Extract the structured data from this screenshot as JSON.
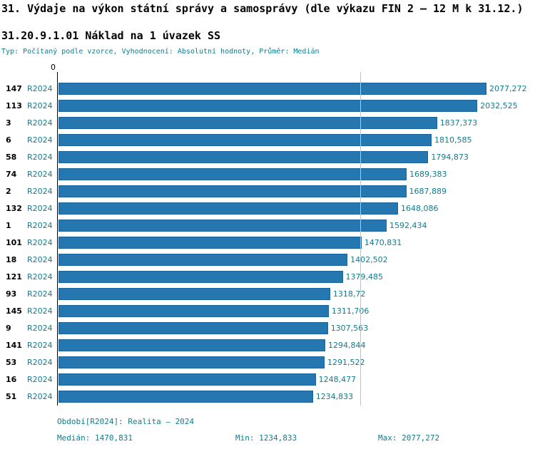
{
  "header": {
    "title": "31. Výdaje na výkon státní správy a samosprávy (dle výkazu FIN 2 – 12 M k 31.12.)",
    "subtitle": "31.20.9.1.01 Náklad na 1 úvazek SS",
    "meta": "Typ: Počítaný podle vzorce, Vyhodnocení: Absolutní hodnoty, Průměr: Medián"
  },
  "chart_data": {
    "type": "bar",
    "orientation": "horizontal",
    "title": "31.20.9.1.01 Náklad na 1 úvazek SS",
    "x_axis_origin_label": "0",
    "xlim": [
      0,
      2077.272
    ],
    "median": 1470.831,
    "min": 1234.833,
    "max": 2077.272,
    "grid": false,
    "legend_position": "none",
    "colors": {
      "bar": "#2577b2",
      "teal_text": "#0e7d8f",
      "axis": "#000000",
      "median_line": "#a8cdda"
    },
    "categories": [
      "147",
      "113",
      "3",
      "6",
      "58",
      "74",
      "2",
      "132",
      "1",
      "101",
      "18",
      "121",
      "93",
      "145",
      "9",
      "141",
      "53",
      "16",
      "51"
    ],
    "series": [
      {
        "name": "R2024",
        "values": [
          2077.272,
          2032.525,
          1837.373,
          1810.585,
          1794.873,
          1689.383,
          1687.889,
          1648.086,
          1592.434,
          1470.831,
          1402.502,
          1379.485,
          1318.72,
          1311.706,
          1307.563,
          1294.844,
          1291.522,
          1248.477,
          1234.833
        ]
      }
    ],
    "rows": [
      {
        "id": "147",
        "period": "R2024",
        "value": 2077.272,
        "label": "2077,272"
      },
      {
        "id": "113",
        "period": "R2024",
        "value": 2032.525,
        "label": "2032,525"
      },
      {
        "id": "3",
        "period": "R2024",
        "value": 1837.373,
        "label": "1837,373"
      },
      {
        "id": "6",
        "period": "R2024",
        "value": 1810.585,
        "label": "1810,585"
      },
      {
        "id": "58",
        "period": "R2024",
        "value": 1794.873,
        "label": "1794,873"
      },
      {
        "id": "74",
        "period": "R2024",
        "value": 1689.383,
        "label": "1689,383"
      },
      {
        "id": "2",
        "period": "R2024",
        "value": 1687.889,
        "label": "1687,889"
      },
      {
        "id": "132",
        "period": "R2024",
        "value": 1648.086,
        "label": "1648,086"
      },
      {
        "id": "1",
        "period": "R2024",
        "value": 1592.434,
        "label": "1592,434"
      },
      {
        "id": "101",
        "period": "R2024",
        "value": 1470.831,
        "label": "1470,831"
      },
      {
        "id": "18",
        "period": "R2024",
        "value": 1402.502,
        "label": "1402,502"
      },
      {
        "id": "121",
        "period": "R2024",
        "value": 1379.485,
        "label": "1379,485"
      },
      {
        "id": "93",
        "period": "R2024",
        "value": 1318.72,
        "label": "1318,72"
      },
      {
        "id": "145",
        "period": "R2024",
        "value": 1311.706,
        "label": "1311,706"
      },
      {
        "id": "9",
        "period": "R2024",
        "value": 1307.563,
        "label": "1307,563"
      },
      {
        "id": "141",
        "period": "R2024",
        "value": 1294.844,
        "label": "1294,844"
      },
      {
        "id": "53",
        "period": "R2024",
        "value": 1291.522,
        "label": "1291,522"
      },
      {
        "id": "16",
        "period": "R2024",
        "value": 1248.477,
        "label": "1248,477"
      },
      {
        "id": "51",
        "period": "R2024",
        "value": 1234.833,
        "label": "1234,833"
      }
    ]
  },
  "footer": {
    "period_line": "Období[R2024]: Realita – 2024",
    "median_label": "Medián: 1470,831",
    "min_label": "Min: 1234,833",
    "max_label": "Max: 2077,272"
  }
}
